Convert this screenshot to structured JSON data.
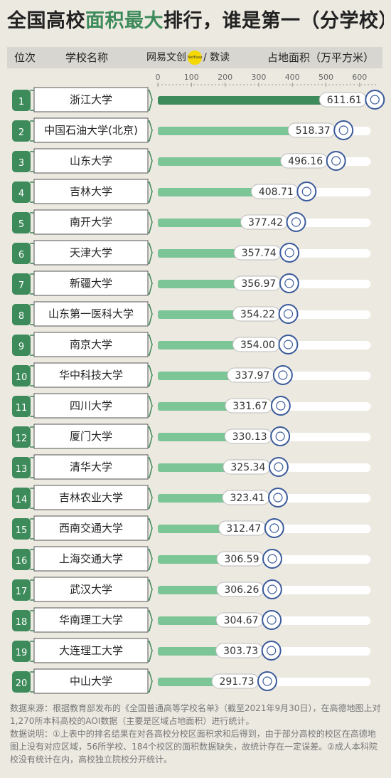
{
  "title": {
    "part1": "全国高校",
    "highlight": "面积最大",
    "part2": "排行，谁是第一（分学校）"
  },
  "header": {
    "rank_label": "位次",
    "school_label": "学校名称",
    "area_label": "占地面积（万平方米）"
  },
  "brand": {
    "name": "网易文创",
    "badge": "NetEase",
    "sub": "/ 数读"
  },
  "colors": {
    "accent": "#3d8a5a",
    "bar": "#7cc596",
    "bar_track": "#ffffff",
    "page_bg": "#ece9e1",
    "header_bg": "#d8d6d0"
  },
  "chart_data": {
    "type": "bar",
    "orientation": "horizontal",
    "xlim": [
      0,
      650
    ],
    "ticks": [
      0,
      100,
      200,
      300,
      400,
      500,
      600
    ],
    "categories": [
      "浙江大学",
      "中国石油大学(北京)",
      "山东大学",
      "吉林大学",
      "南开大学",
      "天津大学",
      "新疆大学",
      "山东第一医科大学",
      "南京大学",
      "华中科技大学",
      "四川大学",
      "厦门大学",
      "清华大学",
      "吉林农业大学",
      "西南交通大学",
      "上海交通大学",
      "武汉大学",
      "华南理工大学",
      "大连理工大学",
      "中山大学"
    ],
    "ranks": [
      "1",
      "2",
      "3",
      "4",
      "5",
      "6",
      "7",
      "8",
      "9",
      "10",
      "11",
      "12",
      "13",
      "14",
      "15",
      "16",
      "17",
      "18",
      "19",
      "20"
    ],
    "values": [
      611.61,
      518.37,
      496.16,
      408.71,
      377.42,
      357.74,
      356.97,
      354.22,
      354.0,
      337.97,
      331.67,
      330.13,
      325.34,
      323.41,
      312.47,
      306.59,
      306.26,
      304.67,
      303.73,
      291.73
    ],
    "value_labels": [
      "611.61",
      "518.37",
      "496.16",
      "408.71",
      "377.42",
      "357.74",
      "356.97",
      "354.22",
      "354.00",
      "337.97",
      "331.67",
      "330.13",
      "325.34",
      "323.41",
      "312.47",
      "306.59",
      "306.26",
      "304.67",
      "303.73",
      "291.73"
    ],
    "xlabel": "占地面积（万平方米）",
    "ylabel": "学校名称"
  },
  "notes": {
    "line1": "数据来源：根据教育部发布的《全国普通高等学校名单》（截至2021年9月30日），在高德地图上对1,270所本科高校的AOI数据（主要是区域占地面积）进行统计。",
    "line2": "数据说明：①上表中的排名结果在对各高校分校区面积求和后得到，由于部分高校的校区在高德地图上没有对应区域，56所学校、184个校区的面积数据缺失，故统计存在一定误差。②成人本科院校没有统计在内，高校独立院校分开统计。"
  }
}
